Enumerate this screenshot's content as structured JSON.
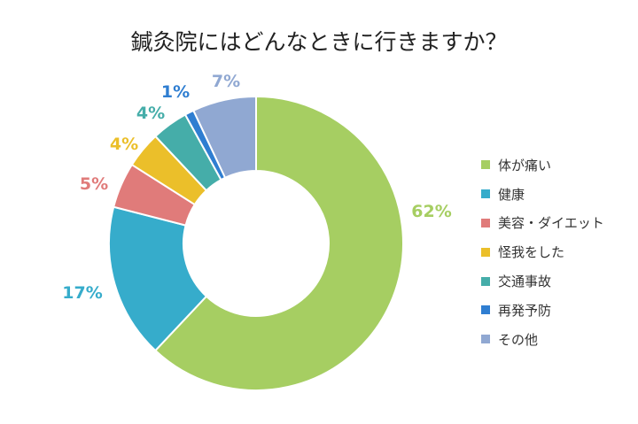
{
  "chart_data": {
    "type": "pie",
    "donut": true,
    "title": "鍼灸院にはどんなときに行きますか？",
    "categories": [
      "体が痛い",
      "健康",
      "美容・ダイエット",
      "怪我をした",
      "交通事故",
      "再発予防",
      "その他"
    ],
    "values": [
      62,
      17,
      5,
      4,
      4,
      1,
      7
    ],
    "labels": [
      "62%",
      "17%",
      "5%",
      "4%",
      "4%",
      "1%",
      "7%"
    ],
    "colors": [
      "#A6CE62",
      "#36ACCB",
      "#E07B7A",
      "#EBBF2A",
      "#45ADA9",
      "#2F7ED1",
      "#90A8D2"
    ],
    "legend_position": "right"
  }
}
